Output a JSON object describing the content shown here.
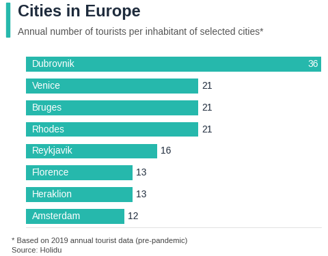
{
  "chart_data": {
    "type": "bar",
    "orientation": "horizontal",
    "title": "Cities in Europe",
    "subtitle": "Annual number of tourists per inhabitant of selected cities*",
    "footnote": "* Based on 2019 annual tourist data (pre-pandemic)",
    "source": "Source: Holidu",
    "categories": [
      "Dubrovnik",
      "Venice",
      "Bruges",
      "Rhodes",
      "Reykjavik",
      "Florence",
      "Heraklion",
      "Amsterdam"
    ],
    "values": [
      36,
      21,
      21,
      21,
      16,
      13,
      13,
      12
    ],
    "color": "#26b8ac",
    "xlim": [
      0,
      36
    ],
    "xticks": [],
    "tick_labels": false,
    "data_labels": true,
    "grid": false
  }
}
